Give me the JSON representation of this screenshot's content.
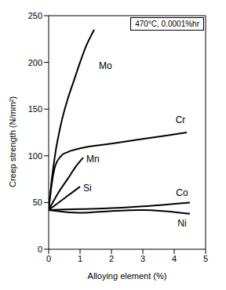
{
  "chart_data": {
    "type": "line",
    "title": "470°C, 0.0001%hr",
    "x_label": "Alloying element (%)",
    "y_label": "Creep strength (N/mm²)",
    "xlim": [
      0,
      5
    ],
    "xticks": [
      0,
      1,
      2,
      3,
      4,
      5
    ],
    "ylim": [
      0,
      250
    ],
    "yticks": [
      0,
      50,
      100,
      150,
      200,
      250
    ],
    "grid": false,
    "series": [
      {
        "name": "Mo",
        "color": "#000000",
        "x": [
          0,
          0.1,
          0.2,
          0.4,
          0.6,
          0.8,
          1.0,
          1.2,
          1.45
        ],
        "values": [
          42,
          75,
          100,
          135,
          160,
          180,
          200,
          218,
          235
        ]
      },
      {
        "name": "Cr",
        "color": "#000000",
        "x": [
          0,
          0.1,
          0.2,
          0.4,
          0.6,
          1.0,
          2.0,
          3.0,
          4.4
        ],
        "values": [
          42,
          70,
          88,
          100,
          104,
          108,
          113,
          118,
          125
        ]
      },
      {
        "name": "Mn",
        "color": "#000000",
        "x": [
          0,
          0.3,
          0.6,
          0.9,
          1.1
        ],
        "values": [
          42,
          60,
          75,
          90,
          98
        ]
      },
      {
        "name": "Si",
        "color": "#000000",
        "x": [
          0,
          0.4,
          0.8,
          1.0
        ],
        "values": [
          42,
          52,
          62,
          67
        ]
      },
      {
        "name": "Co",
        "color": "#000000",
        "x": [
          0,
          1,
          2,
          3,
          4.5
        ],
        "values": [
          42,
          43,
          44,
          46,
          50
        ]
      },
      {
        "name": "Ni",
        "color": "#000000",
        "x": [
          0,
          1,
          2,
          3,
          4.5
        ],
        "values": [
          42,
          39,
          41,
          42,
          38
        ]
      }
    ]
  }
}
